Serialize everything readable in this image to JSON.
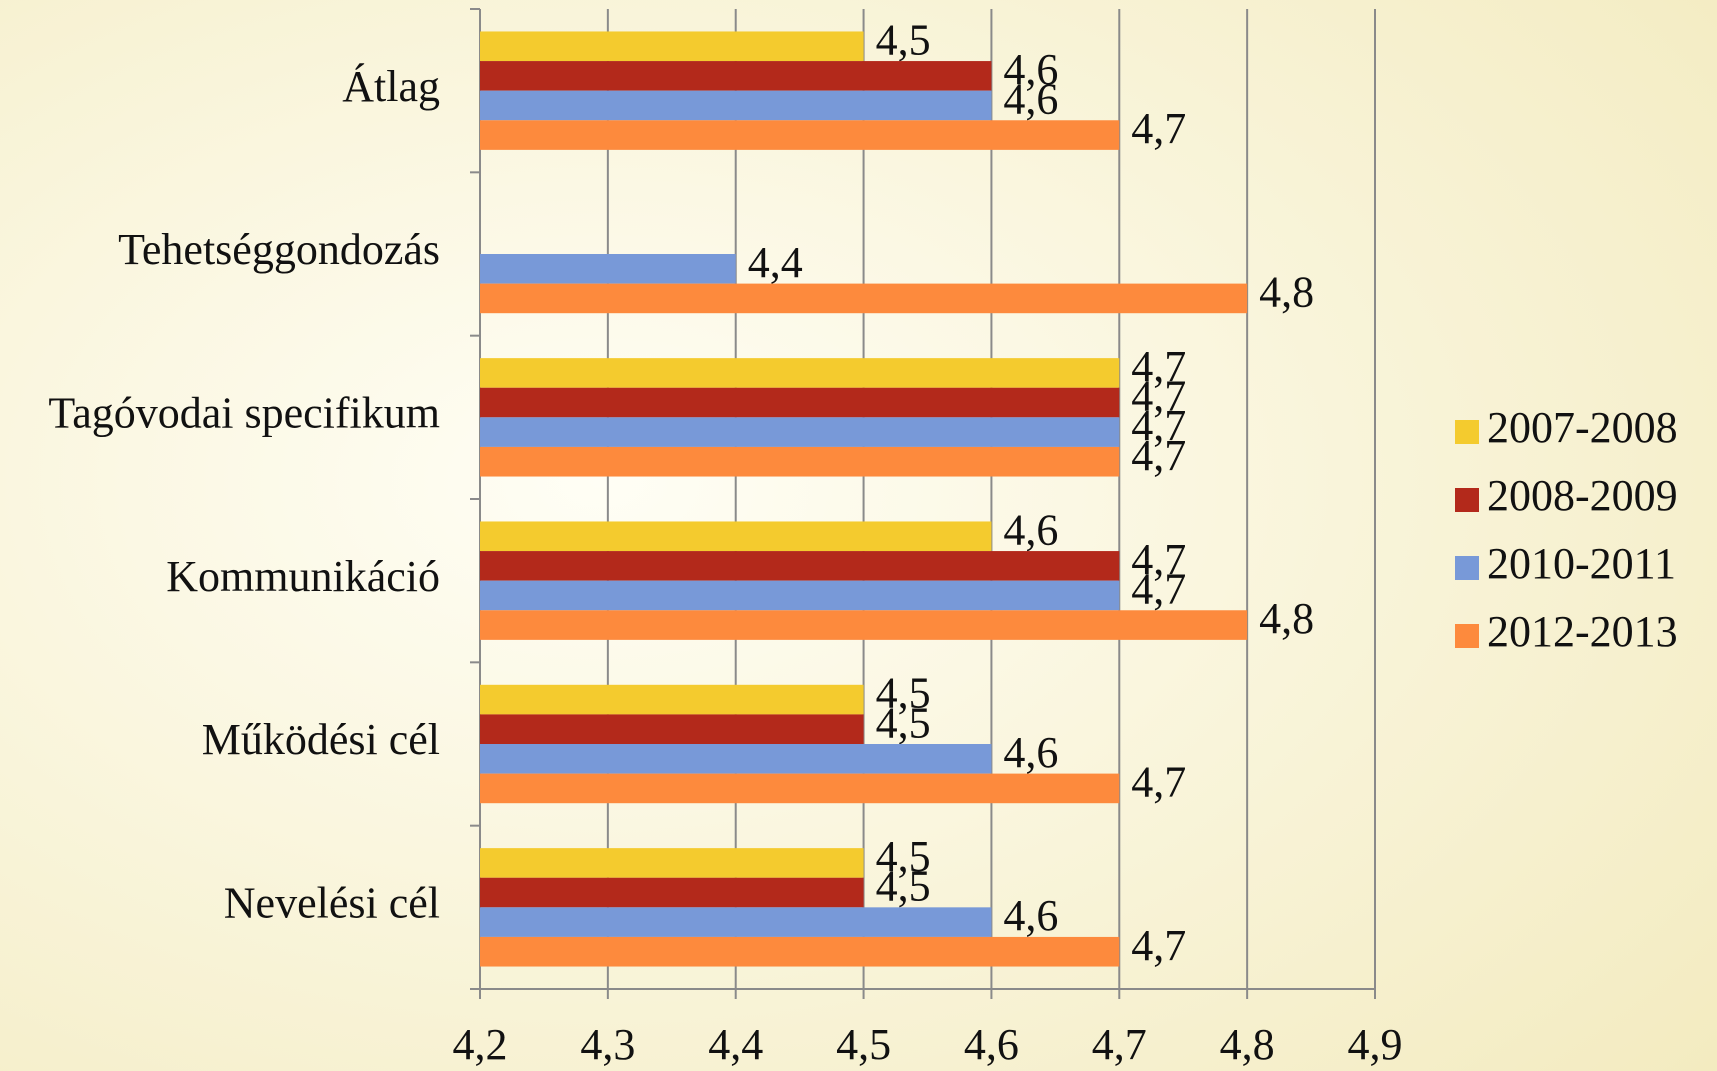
{
  "chart_data": {
    "type": "barh",
    "categories": [
      "Átlag",
      "Tehetséggondozás",
      "Tagóvodai specifikum",
      "Kommunikáció",
      "Működési cél",
      "Nevelési cél"
    ],
    "series": [
      {
        "name": "2007-2008",
        "color": "#f4cb2e",
        "values": [
          4.5,
          null,
          4.7,
          4.6,
          4.5,
          4.5
        ],
        "value_labels": [
          "4,5",
          null,
          "4,7",
          "4,6",
          "4,5",
          "4,5"
        ]
      },
      {
        "name": "2008-2009",
        "color": "#b3291b",
        "values": [
          4.6,
          null,
          4.7,
          4.7,
          4.5,
          4.5
        ],
        "value_labels": [
          "4,6",
          null,
          "4,7",
          "4,7",
          "4,5",
          "4,5"
        ]
      },
      {
        "name": "2010-2011",
        "color": "#7899d8",
        "values": [
          4.6,
          4.4,
          4.7,
          4.7,
          4.6,
          4.6
        ],
        "value_labels": [
          "4,6",
          "4,4",
          "4,7",
          "4,7",
          "4,6",
          "4,6"
        ]
      },
      {
        "name": "2012-2013",
        "color": "#fd8a3d",
        "values": [
          4.7,
          4.8,
          4.7,
          4.8,
          4.7,
          4.7
        ],
        "value_labels": [
          "4,7",
          "4,8",
          "4,7",
          "4,8",
          "4,7",
          "4,7"
        ]
      }
    ],
    "xlim": [
      4.2,
      4.9
    ],
    "xticks": [
      {
        "value": 4.2,
        "label": "4,2"
      },
      {
        "value": 4.3,
        "label": "4,3"
      },
      {
        "value": 4.4,
        "label": "4,4"
      },
      {
        "value": 4.5,
        "label": "4,5"
      },
      {
        "value": 4.6,
        "label": "4,6"
      },
      {
        "value": 4.7,
        "label": "4,7"
      },
      {
        "value": 4.8,
        "label": "4,8"
      },
      {
        "value": 4.9,
        "label": "4,9"
      }
    ],
    "grid": true,
    "legend": "right"
  }
}
